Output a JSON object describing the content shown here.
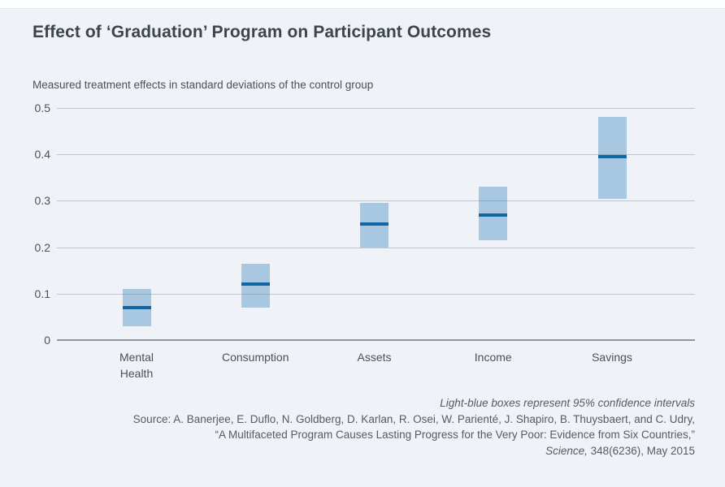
{
  "footer": {
    "note": "Light-blue boxes represent 95% confidence intervals",
    "source_line": "Source: A. Banerjee, E. Duflo, N. Goldberg, D. Karlan, R. Osei, W. Parienté, J. Shapiro, B. Thuysbaert, and C. Udry,",
    "citation_title": "“A Multifaceted Program Causes Lasting Progress for the Very Poor: Evidence from Six Countries,”",
    "journal": "Science,",
    "citation_rest": " 348(6236), May 2015"
  },
  "chart_data": {
    "type": "box",
    "variant": "confidence-interval range boxes with mean line",
    "title": "Effect of ‘Graduation’ Program on Participant Outcomes",
    "subtitle": "Measured treatment effects in standard deviations of the control group",
    "xlabel": "",
    "ylabel": "Measured treatment effects in standard deviations of the control group",
    "categories": [
      "Mental Health",
      "Consumption",
      "Assets",
      "Income",
      "Savings"
    ],
    "points": [
      {
        "category": "Mental Health",
        "label_lines": [
          "Mental",
          "Health"
        ],
        "mean": 0.07,
        "ci_low": 0.03,
        "ci_high": 0.11
      },
      {
        "category": "Consumption",
        "label_lines": [
          "Consumption"
        ],
        "mean": 0.12,
        "ci_low": 0.07,
        "ci_high": 0.165
      },
      {
        "category": "Assets",
        "label_lines": [
          "Assets"
        ],
        "mean": 0.25,
        "ci_low": 0.2,
        "ci_high": 0.295
      },
      {
        "category": "Income",
        "label_lines": [
          "Income"
        ],
        "mean": 0.27,
        "ci_low": 0.215,
        "ci_high": 0.33
      },
      {
        "category": "Savings",
        "label_lines": [
          "Savings"
        ],
        "mean": 0.395,
        "ci_low": 0.305,
        "ci_high": 0.48
      }
    ],
    "ylim": [
      0,
      0.5
    ],
    "yticks": [
      {
        "value": 0,
        "label": "0"
      },
      {
        "value": 0.1,
        "label": "0.1"
      },
      {
        "value": 0.2,
        "label": "0.2"
      },
      {
        "value": 0.3,
        "label": "0.3"
      },
      {
        "value": 0.4,
        "label": "0.4"
      },
      {
        "value": 0.5,
        "label": "0.5"
      }
    ],
    "grid": true,
    "legend": "none",
    "note": "Light-blue boxes represent 95% confidence intervals",
    "colors": {
      "box_fill": "#a8c8e1",
      "mean_line": "#1165a4",
      "background": "#eff3f8",
      "axis_text": "#4b5157",
      "title_text": "#3e444b"
    }
  }
}
